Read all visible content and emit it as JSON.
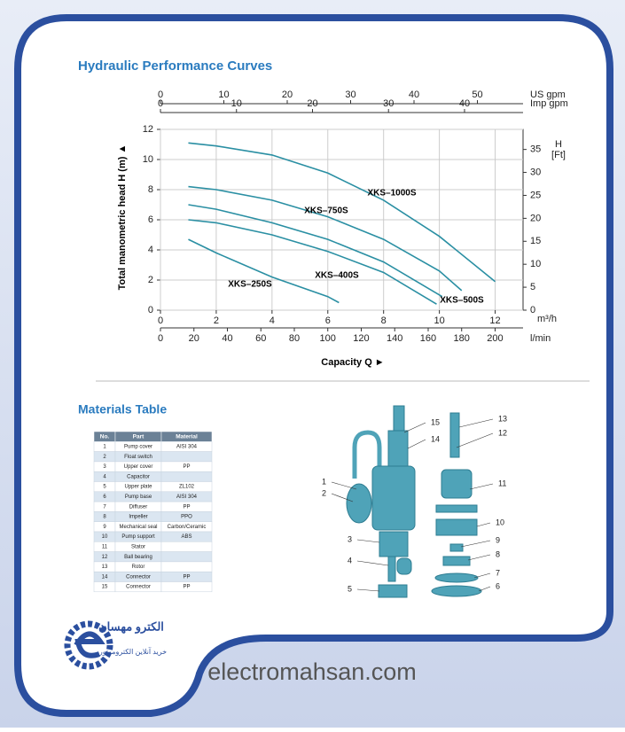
{
  "header": {
    "title": "Hydraulic Performance Curves"
  },
  "chart_data": {
    "type": "line",
    "ylabel": "Total manometric head H (m) ▲",
    "xlabel": "Capacity Q ►",
    "xunit": "m³/h",
    "xlim": [
      0,
      13
    ],
    "xticks": [
      0,
      2,
      4,
      6,
      8,
      10,
      12
    ],
    "ylim": [
      0,
      12
    ],
    "yticks": [
      0,
      2,
      4,
      6,
      8,
      10,
      12
    ],
    "y2label": [
      "H",
      "[Ft]"
    ],
    "y2lim": [
      0,
      39.37
    ],
    "y2ticks": [
      0,
      5,
      10,
      15,
      20,
      25,
      30,
      35
    ],
    "secondary_x_axes": [
      {
        "unit": "l/min",
        "lim": [
          0,
          216.7
        ],
        "ticks": [
          0,
          20,
          40,
          60,
          80,
          100,
          120,
          140,
          160,
          180,
          200
        ]
      },
      {
        "unit": "US  gpm",
        "lim": [
          0,
          57.2
        ],
        "ticks": [
          0,
          10,
          20,
          30,
          40,
          50
        ]
      },
      {
        "unit": "Imp gpm",
        "lim": [
          0,
          47.7
        ],
        "ticks": [
          0,
          10,
          20,
          30,
          40
        ]
      }
    ],
    "grid": true,
    "series": [
      {
        "name": "XKS–1000S",
        "color": "#2a8fa3",
        "x": [
          1,
          2,
          4,
          6,
          8,
          10,
          12
        ],
        "values": [
          11.1,
          10.9,
          10.3,
          9.1,
          7.3,
          4.9,
          1.9
        ]
      },
      {
        "name": "XKS–750S",
        "color": "#2a8fa3",
        "x": [
          1,
          2,
          4,
          6,
          8,
          10,
          10.8
        ],
        "values": [
          8.2,
          8.0,
          7.3,
          6.2,
          4.7,
          2.6,
          1.3
        ]
      },
      {
        "name": "XKS–500S",
        "color": "#2a8fa3",
        "x": [
          1,
          2,
          4,
          6,
          8,
          10.1
        ],
        "values": [
          7.0,
          6.7,
          5.8,
          4.7,
          3.2,
          0.9
        ]
      },
      {
        "name": "XKS–400S",
        "color": "#2a8fa3",
        "x": [
          1,
          2,
          4,
          6,
          8,
          9.9
        ],
        "values": [
          6.0,
          5.8,
          5.0,
          3.9,
          2.5,
          0.4
        ]
      },
      {
        "name": "XKS–250S",
        "color": "#2a8fa3",
        "x": [
          1,
          2,
          4,
          6,
          6.4
        ],
        "values": [
          4.7,
          3.8,
          2.2,
          0.9,
          0.5
        ]
      }
    ]
  },
  "materials": {
    "title": "Materials Table",
    "columns": [
      "No.",
      "Part",
      "Material"
    ],
    "rows": [
      [
        "1",
        "Pump cover",
        "AISI 304"
      ],
      [
        "2",
        "Float switch"
      ],
      [
        "3",
        "Upper cover",
        "PP"
      ],
      [
        "4",
        "Capacitor"
      ],
      [
        "5",
        "Upper plate",
        "ZL102"
      ],
      [
        "6",
        "Pump base",
        "AISI 304"
      ],
      [
        "7",
        "Diffuser",
        "PP"
      ],
      [
        "8",
        "Impeller",
        "PPO"
      ],
      [
        "9",
        "Mechanical seal",
        "Carbon/Ceramic"
      ],
      [
        "10",
        "Pump support",
        "ABS"
      ],
      [
        "11",
        "Stator"
      ],
      [
        "12",
        "Ball bearing"
      ],
      [
        "13",
        "Rotor"
      ],
      [
        "14",
        "Connector",
        "PP"
      ],
      [
        "15",
        "Connector",
        "PP"
      ]
    ]
  },
  "diagram": {
    "callouts": [
      "1",
      "2",
      "3",
      "4",
      "5",
      "6",
      "7",
      "8",
      "9",
      "10",
      "11",
      "12",
      "13",
      "14",
      "15"
    ]
  },
  "footer": {
    "logo_name": "الکترو مهسان",
    "logo_tagline": "خرید آنلاین الکتروموتور",
    "website": "electromahsan.com"
  }
}
